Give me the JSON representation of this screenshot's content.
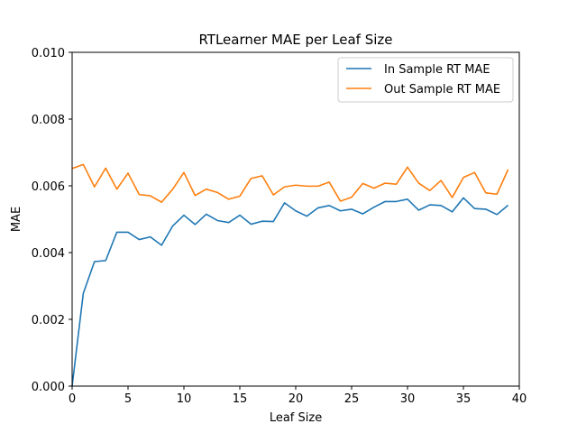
{
  "chart_data": {
    "type": "line",
    "title": "RTLearner MAE per Leaf Size",
    "xlabel": "Leaf Size",
    "ylabel": "MAE",
    "xlim": [
      0,
      40
    ],
    "ylim": [
      0,
      0.01
    ],
    "xticks": [
      0,
      5,
      10,
      15,
      20,
      25,
      30,
      35,
      40
    ],
    "xtick_labels": [
      "0",
      "5",
      "10",
      "15",
      "20",
      "25",
      "30",
      "35",
      "40"
    ],
    "yticks": [
      0,
      0.002,
      0.004,
      0.006,
      0.008,
      0.01
    ],
    "ytick_labels": [
      "0.000",
      "0.002",
      "0.004",
      "0.006",
      "0.008",
      "0.010"
    ],
    "grid": false,
    "legend_position": "upper right",
    "x": [
      0,
      1,
      2,
      3,
      4,
      5,
      6,
      7,
      8,
      9,
      10,
      11,
      12,
      13,
      14,
      15,
      16,
      17,
      18,
      19,
      20,
      21,
      22,
      23,
      24,
      25,
      26,
      27,
      28,
      29,
      30,
      31,
      32,
      33,
      34,
      35,
      36,
      37,
      38,
      39
    ],
    "series": [
      {
        "name": "In Sample RT MAE",
        "color": "#1f77b4",
        "values": [
          0.0,
          0.00278,
          0.00373,
          0.00376,
          0.00461,
          0.00461,
          0.00439,
          0.00447,
          0.00422,
          0.0048,
          0.00512,
          0.00484,
          0.00515,
          0.00496,
          0.0049,
          0.00512,
          0.00485,
          0.00494,
          0.00493,
          0.00549,
          0.00525,
          0.00509,
          0.00534,
          0.00541,
          0.00525,
          0.0053,
          0.00516,
          0.00536,
          0.00553,
          0.00553,
          0.0056,
          0.00527,
          0.00543,
          0.00541,
          0.00522,
          0.00564,
          0.00532,
          0.0053,
          0.00514,
          0.00542
        ]
      },
      {
        "name": "Out Sample RT MAE",
        "color": "#ff7f0e",
        "values": [
          0.00652,
          0.00664,
          0.00597,
          0.00653,
          0.0059,
          0.00638,
          0.00574,
          0.0057,
          0.00551,
          0.0059,
          0.0064,
          0.00571,
          0.0059,
          0.0058,
          0.0056,
          0.00569,
          0.00622,
          0.0063,
          0.00573,
          0.00597,
          0.00602,
          0.00599,
          0.00599,
          0.00611,
          0.00554,
          0.00566,
          0.00607,
          0.00593,
          0.00608,
          0.00605,
          0.00656,
          0.00608,
          0.00586,
          0.00616,
          0.00565,
          0.00625,
          0.0064,
          0.00579,
          0.00575,
          0.00649
        ]
      }
    ]
  }
}
